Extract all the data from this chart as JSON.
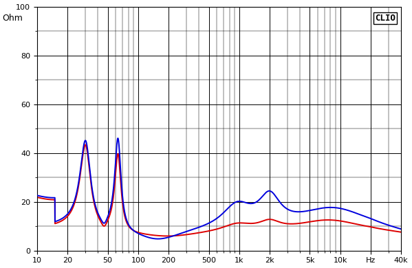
{
  "title": "CLIO",
  "ylabel": "Ohm",
  "xmin": 10,
  "xmax": 40000,
  "ymin": 0,
  "ymax": 100,
  "yticks": [
    0,
    20,
    40,
    60,
    80,
    100
  ],
  "ytick_minor_step": 10,
  "xtick_labels": [
    "10",
    "20",
    "50",
    "100",
    "200",
    "500",
    "1k",
    "2k",
    "5k",
    "10k",
    "Hz",
    "40k"
  ],
  "xtick_positions": [
    10,
    20,
    50,
    100,
    200,
    500,
    1000,
    2000,
    5000,
    10000,
    20000,
    40000
  ],
  "bg_color": "#ffffff",
  "grid_color": "#000000",
  "blue_color": "#0000dd",
  "red_color": "#dd0000",
  "line_width": 1.4
}
